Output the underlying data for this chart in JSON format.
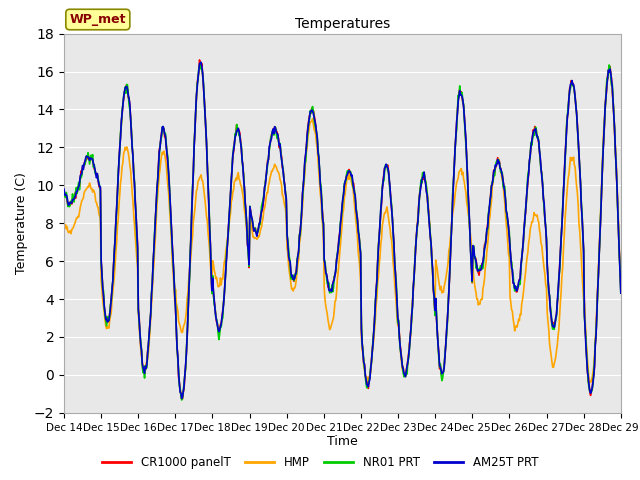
{
  "title": "Temperatures",
  "xlabel": "Time",
  "ylabel": "Temperature (C)",
  "ylim": [
    -2,
    18
  ],
  "x_tick_labels": [
    "Dec 14",
    "Dec 15",
    "Dec 16",
    "Dec 17",
    "Dec 18",
    "Dec 19",
    "Dec 20",
    "Dec 21",
    "Dec 22",
    "Dec 23",
    "Dec 24",
    "Dec 25",
    "Dec 26",
    "Dec 27",
    "Dec 28",
    "Dec 29"
  ],
  "series_colors": [
    "#ff0000",
    "#ffa500",
    "#00cc00",
    "#0000cc"
  ],
  "series_names": [
    "CR1000 panelT",
    "HMP",
    "NR01 PRT",
    "AM25T PRT"
  ],
  "annotation_text": "WP_met",
  "annotation_bg": "#ffff99",
  "annotation_fg": "#880000",
  "bg_color": "#e8e8e8",
  "line_width": 1.2,
  "day_max": [
    11.5,
    15.2,
    13.0,
    16.5,
    13.0,
    13.0,
    14.0,
    10.8,
    11.0,
    10.5,
    15.0,
    11.3,
    13.0,
    15.5,
    16.1
  ],
  "day_min": [
    9.0,
    2.8,
    0.2,
    -1.2,
    2.3,
    7.5,
    5.0,
    4.5,
    -0.5,
    0.0,
    0.0,
    5.5,
    4.5,
    2.5,
    -1.0
  ],
  "hmp_day_max": [
    10.0,
    12.0,
    11.8,
    10.5,
    10.5,
    11.0,
    13.5,
    10.5,
    8.7,
    10.5,
    10.8,
    11.3,
    8.5,
    11.5,
    16.1
  ],
  "hmp_day_min": [
    7.5,
    2.5,
    0.2,
    2.3,
    4.7,
    7.2,
    4.5,
    2.5,
    -0.3,
    0.0,
    4.5,
    3.7,
    2.5,
    0.5,
    -0.5
  ]
}
